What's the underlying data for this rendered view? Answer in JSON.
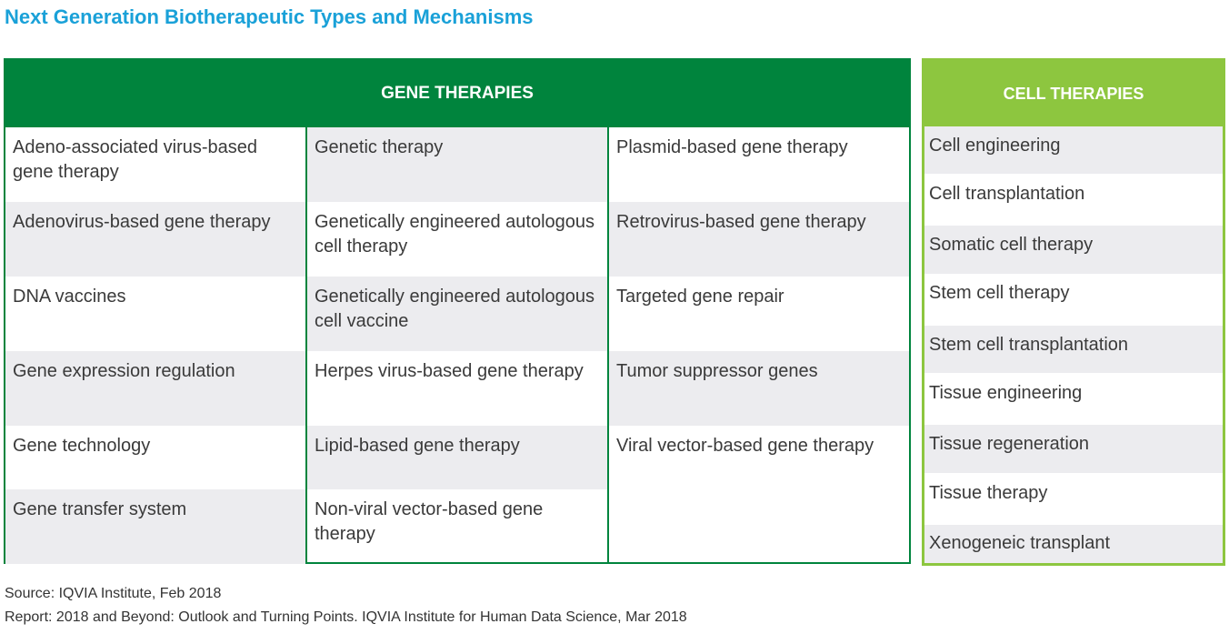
{
  "title": "Next Generation Biotherapeutic Types and Mechanisms",
  "gene_therapies": {
    "header": "GENE THERAPIES",
    "columns": [
      [
        "Adeno-associated virus-based gene therapy",
        "Adenovirus-based gene therapy",
        "DNA vaccines",
        "Gene expression regulation",
        "Gene technology",
        "Gene transfer system"
      ],
      [
        "Genetic therapy",
        "Genetically engineered autologous cell therapy",
        "Genetically engineered autologous cell vaccine",
        "Herpes virus-based gene therapy",
        "Lipid-based gene therapy",
        "Non-viral vector-based gene therapy"
      ],
      [
        "Plasmid-based gene therapy",
        "Retrovirus-based gene therapy",
        "Targeted gene repair",
        "Tumor suppressor genes",
        "Viral vector-based gene therapy"
      ]
    ]
  },
  "cell_therapies": {
    "header": "CELL THERAPIES",
    "items": [
      "Cell engineering",
      "Cell transplantation",
      "Somatic cell therapy",
      "Stem cell therapy",
      "Stem cell transplantation",
      "Tissue engineering",
      "Tissue regeneration",
      "Tissue therapy",
      "Xenogeneic transplant"
    ]
  },
  "footer": {
    "source": "Source: IQVIA Institute, Feb 2018",
    "report": "Report: 2018 and Beyond: Outlook and Turning Points. IQVIA Institute for Human Data Science, Mar 2018"
  },
  "colors": {
    "title": "#1aa1d8",
    "gene_green": "#00843d",
    "cell_green": "#8dc63f",
    "row_shade": "#ececef"
  }
}
